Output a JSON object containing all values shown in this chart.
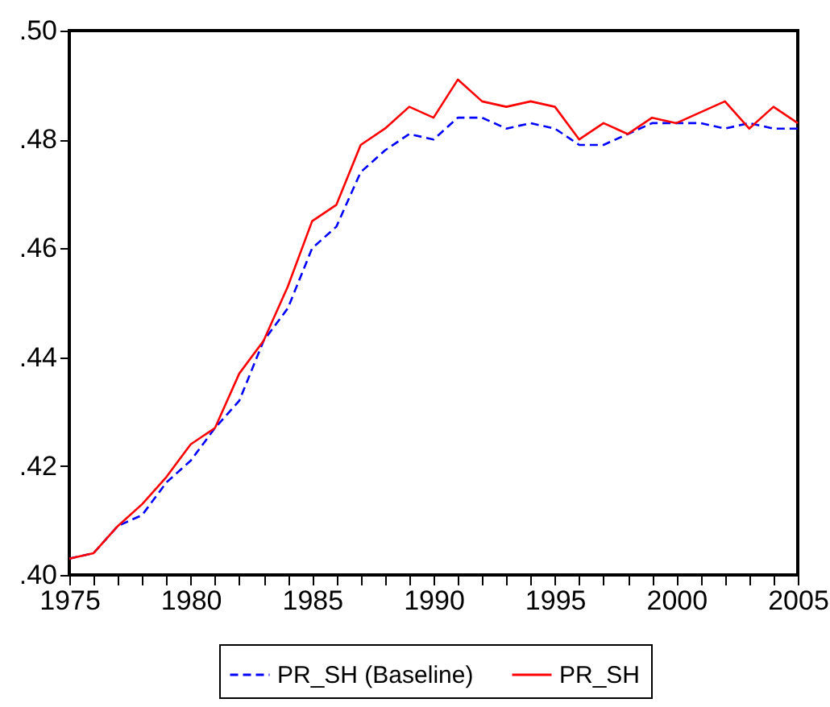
{
  "chart_data": {
    "type": "line",
    "x": [
      1975,
      1976,
      1977,
      1978,
      1979,
      1980,
      1981,
      1982,
      1983,
      1984,
      1985,
      1986,
      1987,
      1988,
      1989,
      1990,
      1991,
      1992,
      1993,
      1994,
      1995,
      1996,
      1997,
      1998,
      1999,
      2000,
      2001,
      2002,
      2003,
      2004,
      2005
    ],
    "series": [
      {
        "name": "PR_SH (Baseline)",
        "color": "#0000ff",
        "line_style": "dashed",
        "values": [
          0.403,
          0.404,
          0.409,
          0.411,
          0.417,
          0.421,
          0.427,
          0.432,
          0.443,
          0.449,
          0.46,
          0.464,
          0.474,
          0.478,
          0.481,
          0.48,
          0.484,
          0.484,
          0.482,
          0.483,
          0.482,
          0.479,
          0.479,
          0.481,
          0.483,
          0.483,
          0.483,
          0.482,
          0.483,
          0.482,
          0.482
        ]
      },
      {
        "name": "PR_SH",
        "color": "#ff0000",
        "line_style": "solid",
        "values": [
          0.403,
          0.404,
          0.409,
          0.413,
          0.418,
          0.424,
          0.427,
          0.437,
          0.443,
          0.453,
          0.465,
          0.468,
          0.479,
          0.482,
          0.486,
          0.484,
          0.491,
          0.487,
          0.486,
          0.487,
          0.486,
          0.48,
          0.483,
          0.481,
          0.484,
          0.483,
          0.485,
          0.487,
          0.482,
          0.486,
          0.483
        ]
      }
    ],
    "xlim": [
      1975,
      2005
    ],
    "xticks": [
      1975,
      {
        "value": 1976,
        "label": null
      },
      {
        "value": 1977,
        "label": null
      },
      {
        "value": 1978,
        "label": null
      },
      {
        "value": 1979,
        "label": null
      },
      1980,
      {
        "value": 1981,
        "label": null
      },
      {
        "value": 1982,
        "label": null
      },
      {
        "value": 1983,
        "label": null
      },
      {
        "value": 1984,
        "label": null
      },
      1985,
      {
        "value": 1986,
        "label": null
      },
      {
        "value": 1987,
        "label": null
      },
      {
        "value": 1988,
        "label": null
      },
      {
        "value": 1989,
        "label": null
      },
      1990,
      {
        "value": 1991,
        "label": null
      },
      {
        "value": 1992,
        "label": null
      },
      {
        "value": 1993,
        "label": null
      },
      {
        "value": 1994,
        "label": null
      },
      1995,
      {
        "value": 1996,
        "label": null
      },
      {
        "value": 1997,
        "label": null
      },
      {
        "value": 1998,
        "label": null
      },
      {
        "value": 1999,
        "label": null
      },
      2000,
      {
        "value": 2001,
        "label": null
      },
      {
        "value": 2002,
        "label": null
      },
      {
        "value": 2003,
        "label": null
      },
      {
        "value": 2004,
        "label": null
      },
      2005
    ],
    "ylim": [
      0.4,
      0.5
    ],
    "yticks": [
      {
        "value": 0.4,
        "label": ".40"
      },
      {
        "value": 0.42,
        "label": ".42"
      },
      {
        "value": 0.44,
        "label": ".44"
      },
      {
        "value": 0.46,
        "label": ".46"
      },
      {
        "value": 0.48,
        "label": ".48"
      },
      {
        "value": 0.5,
        "label": ".50"
      }
    ],
    "grid": false,
    "legend": "bottom"
  }
}
